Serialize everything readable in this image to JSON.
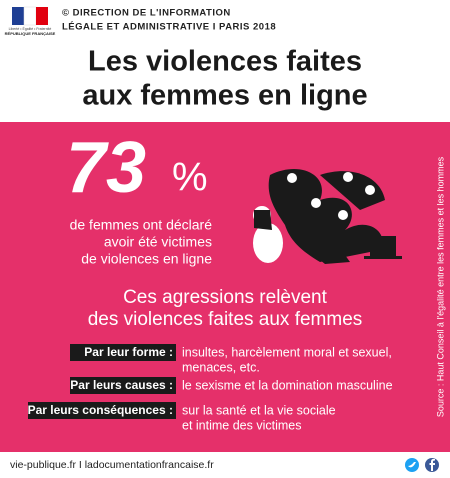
{
  "header": {
    "logo_text": "RÉPUBLIQUE FRANÇAISE",
    "logo_motto": "Liberté • Égalité • Fraternité",
    "credit_lines": [
      "© DIRECTION DE L'INFORMATION",
      "LÉGALE ET ADMINISTRATIVE I PARIS 2018"
    ],
    "title_lines": [
      "Les violences faites",
      "aux femmes en ligne"
    ]
  },
  "stat": {
    "number": "73",
    "unit": "%",
    "caption_lines": [
      "de femmes ont déclaré",
      "avoir été victimes",
      "de violences en ligne"
    ]
  },
  "subtitle_lines": [
    "Ces agressions relèvent",
    "des violences faites aux femmes"
  ],
  "rows": [
    {
      "label": "Par leur forme :",
      "text_lines": [
        "insultes, harcèlement moral et sexuel,",
        "menaces, etc."
      ]
    },
    {
      "label": "Par leurs causes :",
      "text_lines": [
        "le sexisme et la domination masculine"
      ]
    },
    {
      "label": "Par leurs conséquences :",
      "text_lines": [
        "sur la santé et la vie sociale",
        "et intime des victimes"
      ]
    }
  ],
  "source": "Source : Haut Conseil à l'égalité entre les femmes et les hommes",
  "footer": {
    "links": "vie-publique.fr I ladocumentationfrancaise.fr"
  }
}
